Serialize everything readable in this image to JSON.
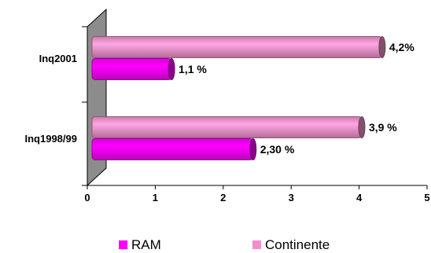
{
  "chart_data": {
    "type": "bar",
    "orientation": "horizontal",
    "three_d": true,
    "categories": [
      "Inq2001",
      "Inq1998/99"
    ],
    "series": [
      {
        "name": "Continente",
        "color": "#F090C8",
        "values": [
          4.2,
          3.9
        ],
        "labels": [
          "4,2%",
          "3,9 %"
        ]
      },
      {
        "name": "RAM",
        "color": "#FF00FF",
        "values": [
          1.1,
          2.3
        ],
        "labels": [
          "1,1 %",
          "2,30 %"
        ]
      }
    ],
    "xlim": [
      0,
      5
    ],
    "x_ticks": [
      "0",
      "1",
      "2",
      "3",
      "4",
      "5"
    ],
    "grid": false,
    "legend": {
      "placement": "bottom",
      "items": [
        {
          "name": "RAM",
          "color": "#FF00FF"
        },
        {
          "name": "Continente",
          "color": "#F090C8"
        }
      ]
    },
    "wall_color": "#8C8C8C"
  }
}
